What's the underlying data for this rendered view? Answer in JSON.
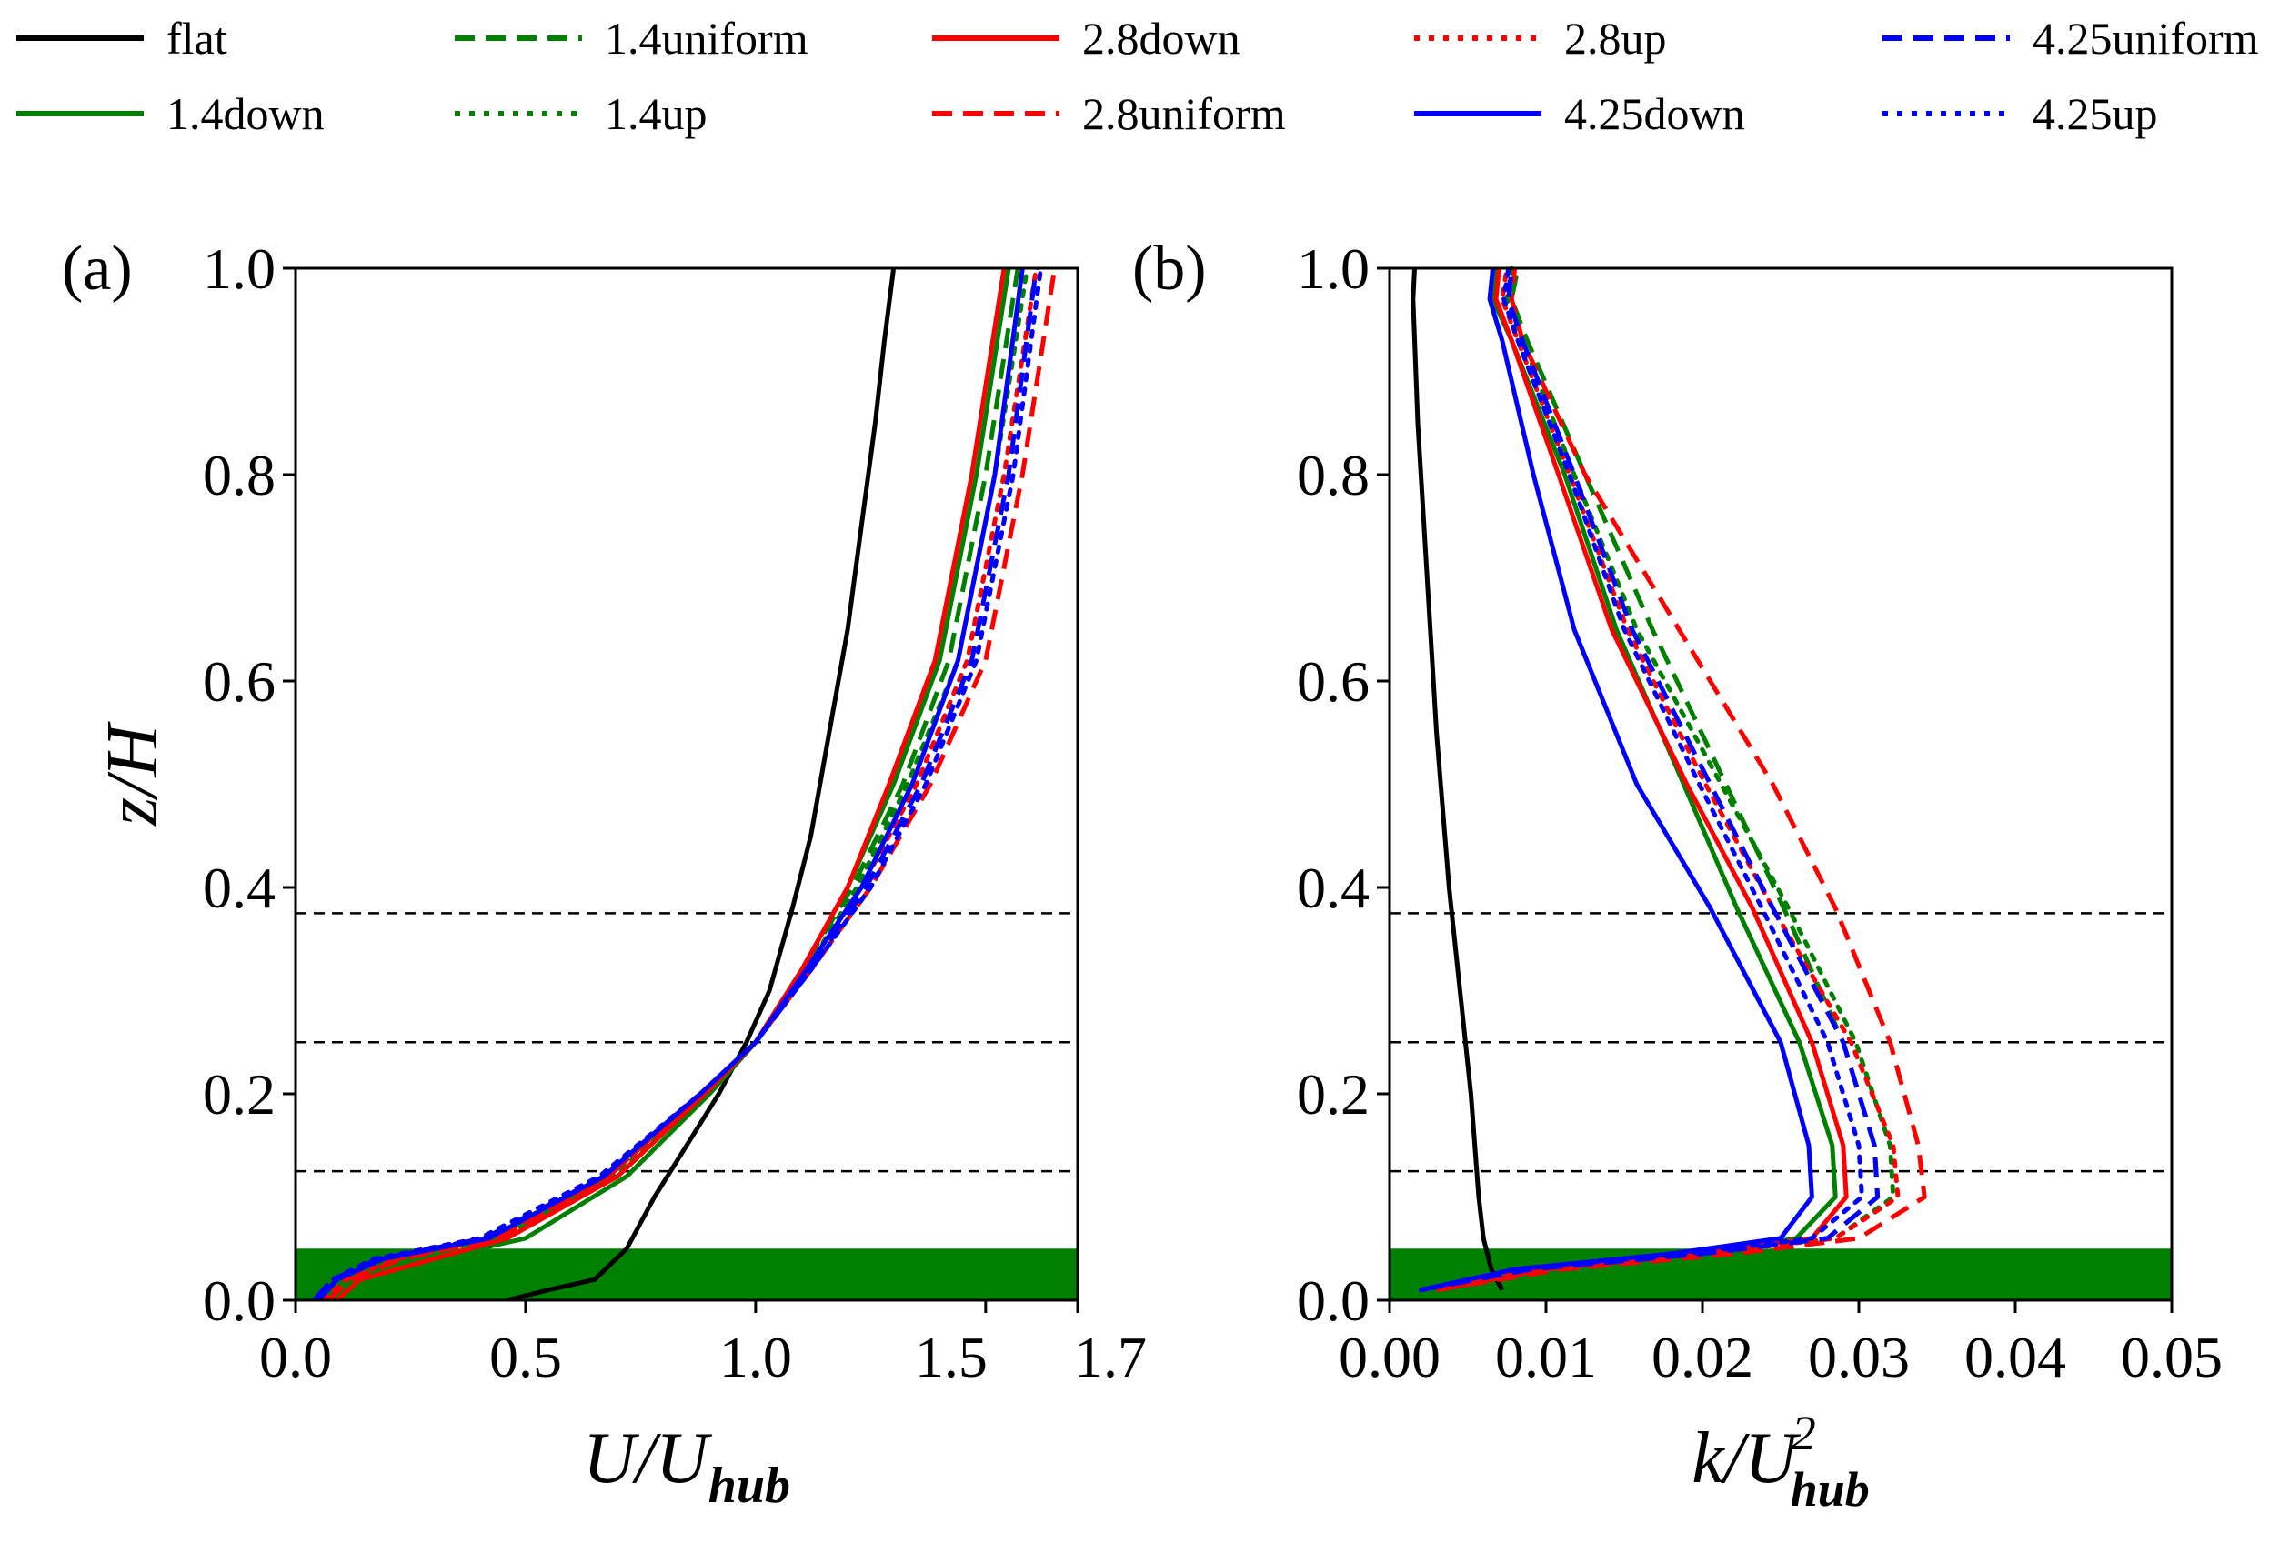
{
  "legend": {
    "entries": [
      {
        "label": "flat",
        "color": "#000000",
        "style": "solid"
      },
      {
        "label": "1.4down",
        "color": "#008000",
        "style": "solid"
      },
      {
        "label": "1.4uniform",
        "color": "#008000",
        "style": "dashed"
      },
      {
        "label": "1.4up",
        "color": "#008000",
        "style": "dotted"
      },
      {
        "label": "2.8down",
        "color": "#ff0000",
        "style": "solid"
      },
      {
        "label": "2.8uniform",
        "color": "#ff0000",
        "style": "dashed"
      },
      {
        "label": "2.8up",
        "color": "#ff0000",
        "style": "dotted"
      },
      {
        "label": "4.25down",
        "color": "#0000ff",
        "style": "solid"
      },
      {
        "label": "4.25uniform",
        "color": "#0000ff",
        "style": "dashed"
      },
      {
        "label": "4.25up",
        "color": "#0000ff",
        "style": "dotted"
      }
    ]
  },
  "chart_data": [
    {
      "type": "line",
      "panel_label": "(a)",
      "xlabel": "U/U",
      "xlabel_sub": "hub",
      "ylabel": "z/H",
      "xlim": [
        0,
        1.7
      ],
      "ylim": [
        0,
        1.0
      ],
      "xticks": [
        0.0,
        0.5,
        1.0,
        1.5,
        1.7
      ],
      "xtick_labels": [
        "0.0",
        "0.5",
        "1.0",
        "1.5",
        "1.7"
      ],
      "yticks": [
        0.0,
        0.2,
        0.4,
        0.6,
        0.8,
        1.0
      ],
      "ytick_labels": [
        "0.0",
        "0.2",
        "0.4",
        "0.6",
        "0.8",
        "1.0"
      ],
      "hlines": [
        0.125,
        0.25,
        0.375
      ],
      "canopy_band": {
        "from": 0.0,
        "to": 0.05,
        "color": "#008000"
      },
      "series": [
        {
          "name": "flat",
          "color": "#000000",
          "style": "solid",
          "x": [
            0.46,
            0.55,
            0.65,
            0.72,
            0.78,
            0.85,
            0.92,
            0.98,
            1.03,
            1.08,
            1.12,
            1.16,
            1.2,
            1.23,
            1.26,
            1.28,
            1.3
          ],
          "y": [
            0.0,
            0.01,
            0.02,
            0.05,
            0.1,
            0.15,
            0.2,
            0.25,
            0.3,
            0.38,
            0.45,
            0.55,
            0.65,
            0.75,
            0.85,
            0.93,
            1.0
          ]
        },
        {
          "name": "1.4down",
          "color": "#008000",
          "style": "solid",
          "x": [
            0.07,
            0.12,
            0.25,
            0.5,
            0.72,
            0.9,
            1.0,
            1.1,
            1.2,
            1.3,
            1.4,
            1.48,
            1.55
          ],
          "y": [
            0.0,
            0.02,
            0.035,
            0.06,
            0.12,
            0.2,
            0.25,
            0.32,
            0.4,
            0.5,
            0.62,
            0.8,
            1.0
          ]
        },
        {
          "name": "1.4uniform",
          "color": "#008000",
          "style": "dashed",
          "x": [
            0.05,
            0.1,
            0.22,
            0.45,
            0.7,
            0.89,
            1.0,
            1.1,
            1.21,
            1.32,
            1.42,
            1.5,
            1.57
          ],
          "y": [
            0.0,
            0.02,
            0.04,
            0.06,
            0.12,
            0.2,
            0.25,
            0.32,
            0.4,
            0.5,
            0.62,
            0.8,
            1.0
          ]
        },
        {
          "name": "1.4up",
          "color": "#008000",
          "style": "dotted",
          "x": [
            0.05,
            0.1,
            0.2,
            0.44,
            0.69,
            0.89,
            1.0,
            1.11,
            1.22,
            1.33,
            1.44,
            1.52,
            1.59
          ],
          "y": [
            0.0,
            0.02,
            0.04,
            0.06,
            0.12,
            0.2,
            0.25,
            0.32,
            0.4,
            0.5,
            0.62,
            0.8,
            1.0
          ]
        },
        {
          "name": "2.8down",
          "color": "#ff0000",
          "style": "solid",
          "x": [
            0.09,
            0.14,
            0.26,
            0.46,
            0.7,
            0.89,
            1.0,
            1.1,
            1.2,
            1.29,
            1.39,
            1.47,
            1.54
          ],
          "y": [
            0.0,
            0.02,
            0.035,
            0.06,
            0.12,
            0.2,
            0.25,
            0.32,
            0.4,
            0.5,
            0.62,
            0.8,
            1.0
          ]
        },
        {
          "name": "2.8uniform",
          "color": "#ff0000",
          "style": "dashed",
          "x": [
            0.07,
            0.12,
            0.23,
            0.44,
            0.68,
            0.88,
            1.0,
            1.12,
            1.25,
            1.38,
            1.5,
            1.58,
            1.65
          ],
          "y": [
            0.0,
            0.02,
            0.04,
            0.06,
            0.12,
            0.2,
            0.25,
            0.32,
            0.4,
            0.5,
            0.62,
            0.8,
            1.0
          ]
        },
        {
          "name": "2.8up",
          "color": "#ff0000",
          "style": "dotted",
          "x": [
            0.06,
            0.11,
            0.22,
            0.43,
            0.68,
            0.88,
            1.0,
            1.11,
            1.23,
            1.35,
            1.46,
            1.54,
            1.61
          ],
          "y": [
            0.0,
            0.02,
            0.04,
            0.06,
            0.12,
            0.2,
            0.25,
            0.32,
            0.4,
            0.5,
            0.62,
            0.8,
            1.0
          ]
        },
        {
          "name": "4.25down",
          "color": "#0000ff",
          "style": "solid",
          "x": [
            0.05,
            0.09,
            0.19,
            0.42,
            0.67,
            0.88,
            1.0,
            1.11,
            1.23,
            1.34,
            1.44,
            1.52,
            1.58
          ],
          "y": [
            0.0,
            0.02,
            0.04,
            0.06,
            0.12,
            0.2,
            0.25,
            0.32,
            0.4,
            0.5,
            0.62,
            0.8,
            1.0
          ]
        },
        {
          "name": "4.25uniform",
          "color": "#0000ff",
          "style": "dashed",
          "x": [
            0.04,
            0.08,
            0.18,
            0.41,
            0.67,
            0.88,
            1.0,
            1.12,
            1.24,
            1.36,
            1.47,
            1.55,
            1.61
          ],
          "y": [
            0.0,
            0.02,
            0.04,
            0.06,
            0.12,
            0.2,
            0.25,
            0.32,
            0.4,
            0.5,
            0.62,
            0.8,
            1.0
          ]
        },
        {
          "name": "4.25up",
          "color": "#0000ff",
          "style": "dotted",
          "x": [
            0.04,
            0.08,
            0.17,
            0.4,
            0.66,
            0.88,
            1.0,
            1.12,
            1.25,
            1.37,
            1.48,
            1.56,
            1.62
          ],
          "y": [
            0.0,
            0.02,
            0.04,
            0.06,
            0.12,
            0.2,
            0.25,
            0.32,
            0.4,
            0.5,
            0.62,
            0.8,
            1.0
          ]
        }
      ]
    },
    {
      "type": "line",
      "panel_label": "(b)",
      "xlabel": "k/U",
      "xlabel_sub": "hub",
      "xlabel_sup": "2",
      "xlim": [
        0,
        0.05
      ],
      "ylim": [
        0,
        1.0
      ],
      "xticks": [
        0.0,
        0.01,
        0.02,
        0.03,
        0.04,
        0.05
      ],
      "xtick_labels": [
        "0.00",
        "0.01",
        "0.02",
        "0.03",
        "0.04",
        "0.05"
      ],
      "yticks": [
        0.0,
        0.2,
        0.4,
        0.6,
        0.8,
        1.0
      ],
      "ytick_labels": [
        "0.0",
        "0.2",
        "0.4",
        "0.6",
        "0.8",
        "1.0"
      ],
      "hlines": [
        0.125,
        0.25,
        0.375
      ],
      "canopy_band": {
        "from": 0.0,
        "to": 0.05,
        "color": "#008000"
      },
      "series": [
        {
          "name": "flat",
          "color": "#000000",
          "style": "solid",
          "x": [
            0.0072,
            0.0065,
            0.006,
            0.0057,
            0.0052,
            0.0045,
            0.0038,
            0.003,
            0.0024,
            0.0018,
            0.0015,
            0.0016
          ],
          "y": [
            0.01,
            0.03,
            0.06,
            0.1,
            0.2,
            0.3,
            0.4,
            0.55,
            0.7,
            0.85,
            0.97,
            1.0
          ]
        },
        {
          "name": "1.4down",
          "color": "#008000",
          "style": "solid",
          "x": [
            0.003,
            0.01,
            0.02,
            0.026,
            0.0285,
            0.0283,
            0.0262,
            0.0222,
            0.0188,
            0.0145,
            0.0112,
            0.0078,
            0.0066,
            0.0068
          ],
          "y": [
            0.01,
            0.03,
            0.045,
            0.06,
            0.1,
            0.15,
            0.25,
            0.38,
            0.5,
            0.65,
            0.8,
            0.93,
            0.97,
            1.0
          ]
        },
        {
          "name": "1.4uniform",
          "color": "#008000",
          "style": "dashed",
          "x": [
            0.002,
            0.009,
            0.02,
            0.028,
            0.0312,
            0.031,
            0.029,
            0.0252,
            0.0215,
            0.0168,
            0.0125,
            0.0088,
            0.0078,
            0.0082
          ],
          "y": [
            0.01,
            0.03,
            0.045,
            0.06,
            0.1,
            0.15,
            0.25,
            0.38,
            0.5,
            0.65,
            0.8,
            0.93,
            0.97,
            1.0
          ]
        },
        {
          "name": "1.4up",
          "color": "#008000",
          "style": "dotted",
          "x": [
            0.002,
            0.009,
            0.02,
            0.0285,
            0.0322,
            0.032,
            0.0298,
            0.0255,
            0.0212,
            0.0158,
            0.0118,
            0.0085,
            0.0075,
            0.0078
          ],
          "y": [
            0.01,
            0.03,
            0.045,
            0.06,
            0.1,
            0.15,
            0.25,
            0.38,
            0.5,
            0.65,
            0.8,
            0.93,
            0.97,
            1.0
          ]
        },
        {
          "name": "2.8down",
          "color": "#ff0000",
          "style": "solid",
          "x": [
            0.003,
            0.01,
            0.02,
            0.027,
            0.0292,
            0.029,
            0.027,
            0.0232,
            0.019,
            0.0142,
            0.0108,
            0.0078,
            0.0068,
            0.007
          ],
          "y": [
            0.01,
            0.03,
            0.045,
            0.06,
            0.1,
            0.15,
            0.25,
            0.38,
            0.5,
            0.65,
            0.8,
            0.93,
            0.97,
            1.0
          ]
        },
        {
          "name": "2.8uniform",
          "color": "#ff0000",
          "style": "dashed",
          "x": [
            0.003,
            0.011,
            0.022,
            0.03,
            0.0342,
            0.0338,
            0.032,
            0.0285,
            0.0245,
            0.0185,
            0.0125,
            0.0085,
            0.0078,
            0.008
          ],
          "y": [
            0.01,
            0.03,
            0.045,
            0.06,
            0.1,
            0.15,
            0.25,
            0.38,
            0.5,
            0.65,
            0.8,
            0.93,
            0.97,
            1.0
          ]
        },
        {
          "name": "2.8up",
          "color": "#ff0000",
          "style": "dotted",
          "x": [
            0.002,
            0.009,
            0.02,
            0.0285,
            0.0325,
            0.0322,
            0.0295,
            0.0245,
            0.0202,
            0.0152,
            0.0115,
            0.0082,
            0.0072,
            0.0075
          ],
          "y": [
            0.01,
            0.03,
            0.045,
            0.06,
            0.1,
            0.15,
            0.25,
            0.38,
            0.5,
            0.65,
            0.8,
            0.93,
            0.97,
            1.0
          ]
        },
        {
          "name": "4.25down",
          "color": "#0000ff",
          "style": "solid",
          "x": [
            0.002,
            0.008,
            0.018,
            0.025,
            0.027,
            0.0268,
            0.025,
            0.0205,
            0.0158,
            0.0118,
            0.0092,
            0.0072,
            0.0064,
            0.0066
          ],
          "y": [
            0.01,
            0.03,
            0.045,
            0.06,
            0.1,
            0.15,
            0.25,
            0.38,
            0.5,
            0.65,
            0.8,
            0.93,
            0.97,
            1.0
          ]
        },
        {
          "name": "4.25uniform",
          "color": "#0000ff",
          "style": "dashed",
          "x": [
            0.002,
            0.009,
            0.02,
            0.028,
            0.0312,
            0.031,
            0.029,
            0.0245,
            0.0205,
            0.0155,
            0.0118,
            0.0085,
            0.0076,
            0.0078
          ],
          "y": [
            0.01,
            0.03,
            0.045,
            0.06,
            0.1,
            0.15,
            0.25,
            0.38,
            0.5,
            0.65,
            0.8,
            0.93,
            0.97,
            1.0
          ]
        },
        {
          "name": "4.25up",
          "color": "#0000ff",
          "style": "dotted",
          "x": [
            0.002,
            0.008,
            0.019,
            0.027,
            0.0302,
            0.03,
            0.028,
            0.0238,
            0.0198,
            0.015,
            0.0115,
            0.0082,
            0.0073,
            0.0076
          ],
          "y": [
            0.01,
            0.03,
            0.045,
            0.06,
            0.1,
            0.15,
            0.25,
            0.38,
            0.5,
            0.65,
            0.8,
            0.93,
            0.97,
            1.0
          ]
        }
      ]
    }
  ]
}
